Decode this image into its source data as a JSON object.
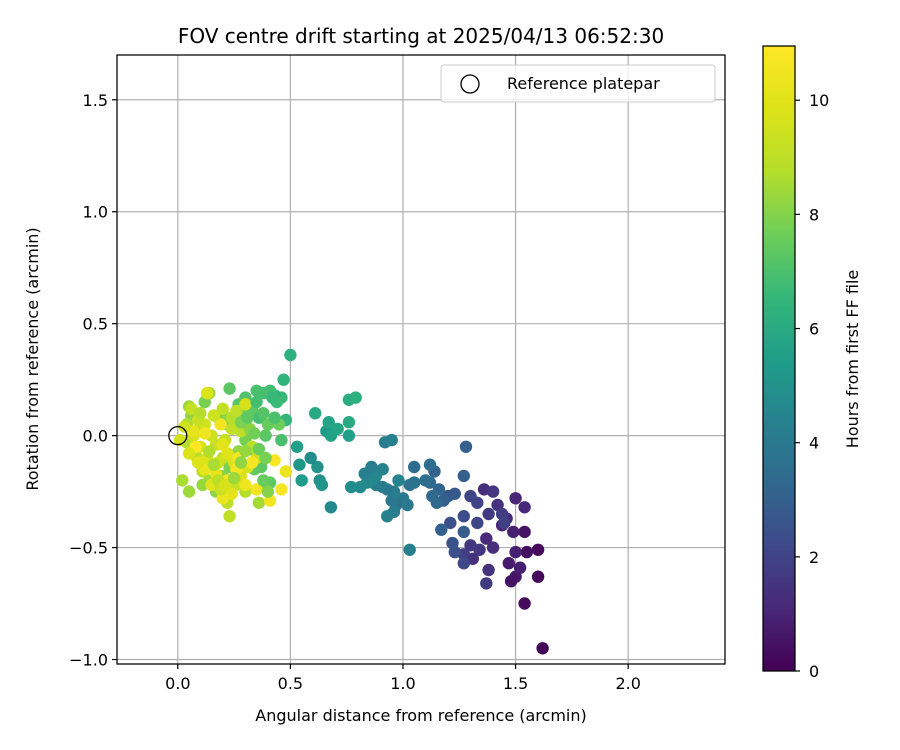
{
  "chart_data": {
    "type": "scatter",
    "title": "FOV centre drift starting at 2025/04/13 06:52:30",
    "xlabel": "Angular distance from reference (arcmin)",
    "ylabel": "Rotation from reference (arcmin)",
    "xlim": [
      -0.27,
      2.43
    ],
    "ylim": [
      -1.02,
      1.7
    ],
    "xticks": [
      0.0,
      0.5,
      1.0,
      1.5,
      2.0
    ],
    "xtick_labels": [
      "0.0",
      "0.5",
      "1.0",
      "1.5",
      "2.0"
    ],
    "yticks": [
      -1.0,
      -0.5,
      0.0,
      0.5,
      1.0,
      1.5
    ],
    "ytick_labels": [
      "−1.0",
      "−0.5",
      "0.0",
      "0.5",
      "1.0",
      "1.5"
    ],
    "grid": true,
    "legend": {
      "placement": "top-right",
      "entries": [
        "Reference platepar"
      ]
    },
    "colorbar": {
      "label": "Hours from first FF file",
      "range": [
        0,
        10.95
      ],
      "ticks": [
        0,
        2,
        4,
        6,
        8,
        10
      ],
      "tick_labels": [
        "0",
        "2",
        "4",
        "6",
        "8",
        "10"
      ],
      "colormap": "viridis"
    },
    "reference_point": {
      "x": 0.0,
      "y": 0.0
    },
    "points": [
      [
        1.62,
        -0.95,
        0.1
      ],
      [
        1.54,
        -0.75,
        0.3
      ],
      [
        1.6,
        -0.63,
        0.2
      ],
      [
        1.6,
        -0.51,
        0.2
      ],
      [
        1.55,
        -0.52,
        0.4
      ],
      [
        1.54,
        -0.43,
        0.5
      ],
      [
        1.5,
        -0.63,
        0.6
      ],
      [
        1.48,
        -0.65,
        0.5
      ],
      [
        1.47,
        -0.57,
        0.7
      ],
      [
        1.52,
        -0.59,
        0.8
      ],
      [
        1.5,
        -0.52,
        0.9
      ],
      [
        1.49,
        -0.43,
        0.9
      ],
      [
        1.5,
        -0.28,
        1.0
      ],
      [
        1.54,
        -0.32,
        1.1
      ],
      [
        1.46,
        -0.37,
        1.2
      ],
      [
        1.44,
        -0.4,
        1.1
      ],
      [
        1.4,
        -0.5,
        1.3
      ],
      [
        1.37,
        -0.46,
        1.2
      ],
      [
        1.38,
        -0.6,
        1.5
      ],
      [
        1.37,
        -0.66,
        1.7
      ],
      [
        1.34,
        -0.51,
        1.6
      ],
      [
        1.31,
        -0.55,
        1.4
      ],
      [
        1.3,
        -0.49,
        1.6
      ],
      [
        1.27,
        -0.53,
        1.8
      ],
      [
        1.42,
        -0.31,
        1.4
      ],
      [
        1.36,
        -0.24,
        1.3
      ],
      [
        1.4,
        -0.25,
        1.6
      ],
      [
        1.38,
        -0.35,
        1.7
      ],
      [
        1.44,
        -0.35,
        1.8
      ],
      [
        1.45,
        -0.39,
        1.9
      ],
      [
        1.33,
        -0.3,
        2.0
      ],
      [
        1.33,
        -0.39,
        2.1
      ],
      [
        1.3,
        -0.27,
        2.1
      ],
      [
        1.27,
        -0.36,
        2.3
      ],
      [
        1.27,
        -0.57,
        2.2
      ],
      [
        1.23,
        -0.52,
        2.4
      ],
      [
        1.22,
        -0.48,
        2.5
      ],
      [
        1.21,
        -0.39,
        2.4
      ],
      [
        1.2,
        -0.27,
        2.6
      ],
      [
        1.23,
        -0.26,
        2.8
      ],
      [
        1.27,
        -0.43,
        2.9
      ],
      [
        1.27,
        -0.18,
        3.0
      ],
      [
        1.28,
        -0.05,
        3.0
      ],
      [
        1.18,
        -0.29,
        3.1
      ],
      [
        1.17,
        -0.42,
        3.0
      ],
      [
        1.15,
        -0.3,
        3.3
      ],
      [
        1.16,
        -0.24,
        3.2
      ],
      [
        1.13,
        -0.27,
        3.4
      ],
      [
        1.14,
        -0.16,
        3.1
      ],
      [
        1.12,
        -0.21,
        3.3
      ],
      [
        1.1,
        -0.2,
        3.6
      ],
      [
        1.12,
        -0.13,
        3.5
      ],
      [
        1.05,
        -0.14,
        3.5
      ],
      [
        1.03,
        -0.22,
        3.7
      ],
      [
        1.05,
        -0.21,
        3.8
      ],
      [
        1.02,
        -0.31,
        3.9
      ],
      [
        1.0,
        -0.28,
        4.0
      ],
      [
        0.97,
        -0.31,
        3.8
      ],
      [
        0.95,
        -0.29,
        3.9
      ],
      [
        0.96,
        -0.34,
        4.1
      ],
      [
        0.93,
        -0.36,
        4.3
      ],
      [
        0.96,
        -0.25,
        4.2
      ],
      [
        0.98,
        -0.2,
        4.4
      ],
      [
        0.93,
        -0.24,
        4.0
      ],
      [
        0.91,
        -0.23,
        4.1
      ],
      [
        0.88,
        -0.22,
        4.2
      ],
      [
        0.88,
        -0.18,
        4.6
      ],
      [
        0.86,
        -0.2,
        4.5
      ],
      [
        0.84,
        -0.21,
        4.6
      ],
      [
        0.81,
        -0.23,
        4.7
      ],
      [
        0.83,
        -0.17,
        4.3
      ],
      [
        0.86,
        -0.14,
        4.2
      ],
      [
        0.92,
        -0.03,
        4.1
      ],
      [
        0.95,
        -0.02,
        4.3
      ],
      [
        0.91,
        -0.15,
        4.4
      ],
      [
        1.03,
        -0.51,
        4.3
      ],
      [
        0.68,
        -0.32,
        4.6
      ],
      [
        0.77,
        -0.23,
        4.8
      ],
      [
        0.63,
        -0.2,
        4.9
      ],
      [
        0.62,
        -0.14,
        5.0
      ],
      [
        0.59,
        -0.1,
        4.8
      ],
      [
        0.64,
        -0.22,
        5.1
      ],
      [
        0.54,
        -0.13,
        5.2
      ],
      [
        0.55,
        -0.2,
        5.3
      ],
      [
        0.53,
        -0.05,
        5.5
      ],
      [
        0.66,
        0.02,
        5.4
      ],
      [
        0.68,
        0.0,
        5.6
      ],
      [
        0.71,
        0.03,
        5.8
      ],
      [
        0.67,
        0.06,
        5.7
      ],
      [
        0.61,
        0.1,
        5.9
      ],
      [
        0.76,
        0.0,
        5.5
      ],
      [
        0.76,
        0.06,
        6.0
      ],
      [
        0.76,
        0.16,
        6.1
      ],
      [
        0.79,
        0.17,
        6.2
      ],
      [
        0.5,
        0.36,
        6.2
      ],
      [
        0.47,
        0.25,
        6.4
      ],
      [
        0.48,
        0.07,
        6.5
      ],
      [
        0.46,
        0.17,
        6.6
      ],
      [
        0.43,
        0.18,
        6.3
      ],
      [
        0.41,
        0.2,
        6.8
      ],
      [
        0.44,
        0.15,
        6.7
      ],
      [
        0.35,
        0.2,
        7.0
      ],
      [
        0.38,
        0.19,
        6.9
      ],
      [
        0.3,
        0.17,
        7.1
      ],
      [
        0.23,
        0.21,
        7.3
      ],
      [
        0.27,
        0.14,
        7.2
      ],
      [
        0.33,
        0.12,
        7.4
      ],
      [
        0.36,
        0.08,
        6.9
      ],
      [
        0.4,
        0.05,
        7.5
      ],
      [
        0.39,
        0.0,
        7.3
      ],
      [
        0.46,
        -0.02,
        7.0
      ],
      [
        0.45,
        0.05,
        7.6
      ],
      [
        0.28,
        0.1,
        7.7
      ],
      [
        0.26,
        0.05,
        7.8
      ],
      [
        0.22,
        0.05,
        7.9
      ],
      [
        0.2,
        0.1,
        8.0
      ],
      [
        0.18,
        0.08,
        8.1
      ],
      [
        0.12,
        0.15,
        7.8
      ],
      [
        0.14,
        0.19,
        8.3
      ],
      [
        0.05,
        0.13,
        8.4
      ],
      [
        0.06,
        0.09,
        8.2
      ],
      [
        0.04,
        0.05,
        8.6
      ],
      [
        0.08,
        0.02,
        8.5
      ],
      [
        0.04,
        -0.03,
        8.7
      ],
      [
        0.02,
        -0.2,
        8.6
      ],
      [
        0.05,
        -0.25,
        8.4
      ],
      [
        0.08,
        -0.09,
        8.8
      ],
      [
        0.11,
        -0.16,
        8.9
      ],
      [
        0.14,
        -0.2,
        8.5
      ],
      [
        0.11,
        -0.22,
        8.3
      ],
      [
        0.17,
        -0.25,
        8.1
      ],
      [
        0.2,
        -0.18,
        8.0
      ],
      [
        0.23,
        -0.14,
        7.9
      ],
      [
        0.27,
        -0.07,
        8.2
      ],
      [
        0.3,
        -0.02,
        7.8
      ],
      [
        0.32,
        -0.06,
        7.6
      ],
      [
        0.34,
        -0.15,
        7.5
      ],
      [
        0.37,
        -0.14,
        7.3
      ],
      [
        0.39,
        -0.22,
        7.1
      ],
      [
        0.41,
        -0.21,
        7.4
      ],
      [
        0.36,
        -0.3,
        8.5
      ],
      [
        0.3,
        -0.25,
        8.8
      ],
      [
        0.22,
        -0.3,
        9.0
      ],
      [
        0.23,
        -0.36,
        9.1
      ],
      [
        0.26,
        -0.22,
        9.2
      ],
      [
        0.2,
        -0.1,
        9.0
      ],
      [
        0.17,
        -0.04,
        9.3
      ],
      [
        0.15,
        0.0,
        9.4
      ],
      [
        0.12,
        0.05,
        9.5
      ],
      [
        0.09,
        0.07,
        9.3
      ],
      [
        0.07,
        0.0,
        9.6
      ],
      [
        0.1,
        -0.05,
        9.7
      ],
      [
        0.13,
        -0.1,
        9.8
      ],
      [
        0.12,
        -0.15,
        9.9
      ],
      [
        0.18,
        -0.12,
        9.5
      ],
      [
        0.21,
        -0.02,
        9.2
      ],
      [
        0.24,
        0.03,
        9.1
      ],
      [
        0.28,
        0.02,
        9.0
      ],
      [
        0.33,
        -0.05,
        8.9
      ],
      [
        0.35,
        -0.1,
        9.4
      ],
      [
        0.31,
        -0.14,
        9.6
      ],
      [
        0.28,
        -0.18,
        9.7
      ],
      [
        0.25,
        -0.12,
        9.9
      ],
      [
        0.22,
        -0.08,
        10.0
      ],
      [
        0.2,
        -0.04,
        10.1
      ],
      [
        0.17,
        -0.17,
        10.2
      ],
      [
        0.15,
        -0.22,
        10.0
      ],
      [
        0.12,
        -0.15,
        10.3
      ],
      [
        0.24,
        -0.26,
        10.1
      ],
      [
        0.3,
        -0.22,
        10.4
      ],
      [
        0.26,
        -0.15,
        10.5
      ],
      [
        0.22,
        -0.2,
        10.6
      ],
      [
        0.27,
        -0.1,
        10.7
      ],
      [
        0.33,
        -0.12,
        10.8
      ],
      [
        0.35,
        -0.24,
        10.5
      ],
      [
        0.41,
        -0.29,
        10.6
      ],
      [
        0.43,
        -0.11,
        10.8
      ],
      [
        0.48,
        -0.16,
        10.3
      ],
      [
        0.46,
        -0.24,
        10.7
      ],
      [
        0.2,
        -0.28,
        10.4
      ],
      [
        0.07,
        0.02,
        10.2
      ],
      [
        0.12,
        0.01,
        10.5
      ],
      [
        0.08,
        -0.05,
        10.9
      ],
      [
        0.19,
        0.05,
        10.6
      ],
      [
        0.13,
        0.19,
        9.8
      ],
      [
        0.16,
        0.09,
        9.4
      ],
      [
        0.2,
        0.12,
        9.1
      ],
      [
        0.24,
        0.08,
        8.8
      ],
      [
        0.3,
        0.14,
        9.7
      ],
      [
        0.26,
        0.11,
        9.0
      ],
      [
        0.06,
        0.12,
        9.2
      ],
      [
        0.1,
        0.1,
        8.8
      ],
      [
        0.03,
        0.04,
        9.5
      ],
      [
        0.01,
        -0.02,
        9.6
      ],
      [
        0.05,
        -0.08,
        9.8
      ],
      [
        0.09,
        -0.12,
        9.9
      ],
      [
        0.14,
        -0.07,
        8.7
      ],
      [
        0.16,
        -0.13,
        8.6
      ],
      [
        0.18,
        -0.2,
        8.9
      ],
      [
        0.19,
        -0.24,
        9.3
      ],
      [
        0.21,
        -0.22,
        9.7
      ],
      [
        0.25,
        -0.19,
        8.4
      ],
      [
        0.28,
        -0.12,
        8.2
      ],
      [
        0.3,
        -0.07,
        8.3
      ],
      [
        0.32,
        0.03,
        8.1
      ],
      [
        0.28,
        0.06,
        7.9
      ],
      [
        0.34,
        0.01,
        7.7
      ],
      [
        0.38,
        0.1,
        7.2
      ],
      [
        0.43,
        0.08,
        7.0
      ],
      [
        0.31,
        0.08,
        7.4
      ],
      [
        0.35,
        0.15,
        6.9
      ],
      [
        0.42,
        0.17,
        6.6
      ],
      [
        0.36,
        -0.06,
        7.6
      ],
      [
        0.39,
        -0.1,
        7.8
      ],
      [
        0.38,
        -0.2,
        7.5
      ],
      [
        0.4,
        -0.25,
        8.0
      ]
    ]
  }
}
